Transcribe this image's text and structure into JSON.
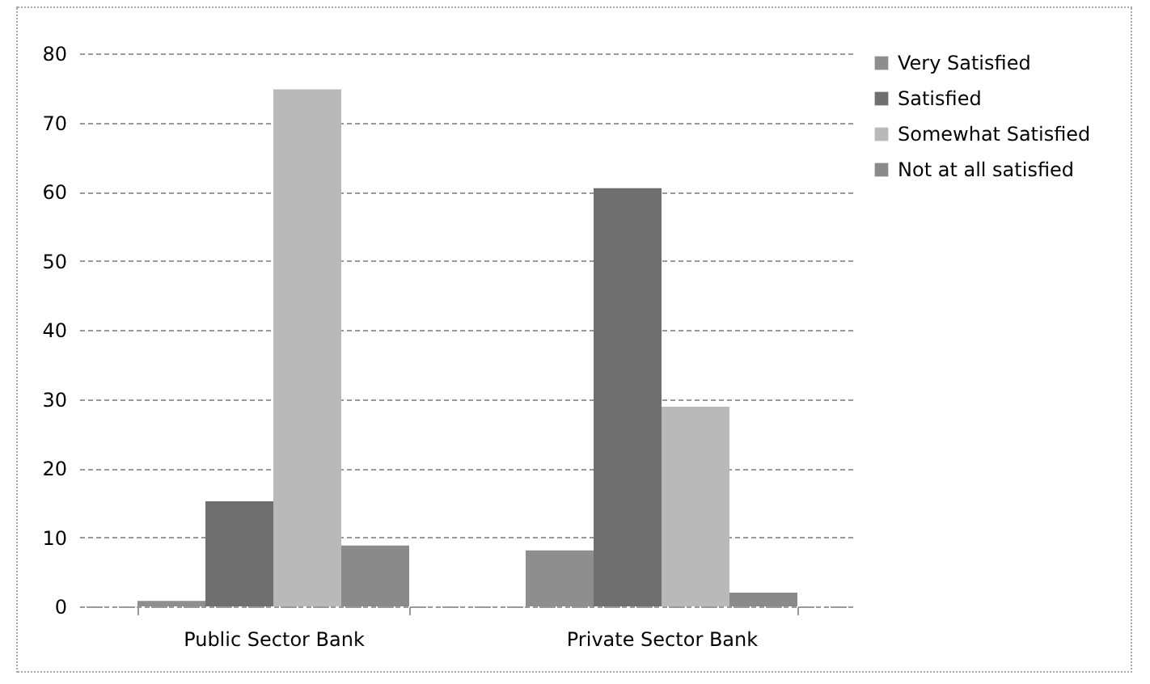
{
  "chart_data": {
    "type": "bar",
    "categories": [
      "Public Sector Bank",
      "Private Sector Bank"
    ],
    "series": [
      {
        "name": "Very Satisfied",
        "color": "#8e8e8e",
        "values": [
          0.8,
          8.1
        ]
      },
      {
        "name": "Satisfied",
        "color": "#6f6f6f",
        "values": [
          15.2,
          60.5
        ]
      },
      {
        "name": "Somewhat Satisfied",
        "color": "#b9b9b9",
        "values": [
          74.8,
          28.9
        ]
      },
      {
        "name": "Not at all satisfied",
        "color": "#8a8a8a",
        "values": [
          8.8,
          2
        ]
      }
    ],
    "ylim": [
      0,
      80
    ],
    "yticks": [
      0,
      10,
      20,
      30,
      40,
      50,
      60,
      70,
      80
    ],
    "grid": "y",
    "legend": "right"
  }
}
